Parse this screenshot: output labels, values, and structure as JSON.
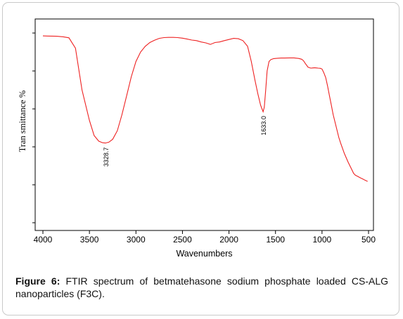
{
  "chart_data": {
    "type": "line",
    "title": "",
    "xlabel": "Wavenumbers",
    "ylabel": "Tran smittance %",
    "xlim": [
      4000,
      500
    ],
    "x_reversed": true,
    "xticks": [
      4000,
      3500,
      3000,
      2500,
      2000,
      1500,
      1000,
      500
    ],
    "ylim": [
      0,
      100
    ],
    "yticks": [
      0,
      20,
      40,
      60,
      80,
      100
    ],
    "grid": false,
    "line_color": "#ee2222",
    "series": [
      {
        "name": "",
        "x": [
          4000,
          3950,
          3850,
          3780,
          3720,
          3650,
          3580,
          3500,
          3450,
          3400,
          3360,
          3328.7,
          3290,
          3250,
          3200,
          3150,
          3100,
          3050,
          3000,
          2950,
          2900,
          2850,
          2800,
          2750,
          2700,
          2650,
          2600,
          2550,
          2500,
          2450,
          2400,
          2350,
          2300,
          2250,
          2200,
          2150,
          2100,
          2050,
          2000,
          1950,
          1900,
          1850,
          1800,
          1760,
          1720,
          1690,
          1660,
          1645,
          1633,
          1620,
          1605,
          1590,
          1570,
          1550,
          1520,
          1480,
          1440,
          1400,
          1350,
          1300,
          1250,
          1220,
          1200,
          1180,
          1150,
          1120,
          1100,
          1080,
          1060,
          1040,
          1020,
          1000,
          980,
          960,
          940,
          920,
          900,
          880,
          850,
          820,
          800,
          760,
          720,
          690,
          660,
          640,
          620,
          600,
          580,
          560,
          540,
          520,
          510
        ],
        "y": [
          98.5,
          98.4,
          98.3,
          98.0,
          97.5,
          92,
          70,
          54,
          46,
          43,
          42.2,
          42.0,
          42.5,
          44,
          48.5,
          57,
          67,
          77,
          85,
          90,
          93,
          95,
          96.2,
          97.2,
          97.6,
          97.7,
          97.7,
          97.6,
          97.3,
          96.8,
          96.3,
          96.0,
          95.3,
          94.8,
          94.0,
          95.0,
          95.3,
          96.0,
          96.6,
          97.2,
          97.0,
          96.0,
          93,
          85,
          75,
          68,
          62,
          60,
          58.5,
          61,
          70,
          80,
          85,
          86,
          86.5,
          86.7,
          86.8,
          86.8,
          86.9,
          86.9,
          86.6,
          86.2,
          85.5,
          84.0,
          82.0,
          81.5,
          81.6,
          81.7,
          81.6,
          81.5,
          81.4,
          81.0,
          79.0,
          76.5,
          72,
          67,
          62,
          57,
          51,
          45,
          42,
          36.5,
          32,
          29,
          26,
          25,
          24.5,
          24,
          23.5,
          23,
          22.5,
          22,
          21.8
        ]
      }
    ],
    "annotations": [
      {
        "label": "3328.7",
        "x": 3328.7,
        "y": 42.0
      },
      {
        "label": "1633.0",
        "x": 1633,
        "y": 58.5
      }
    ]
  },
  "caption": {
    "label": "Figure 6:",
    "text": " FTIR spectrum of betmatehasone sodium phosphate loaded CS-ALG nanoparticles (F3C)."
  }
}
